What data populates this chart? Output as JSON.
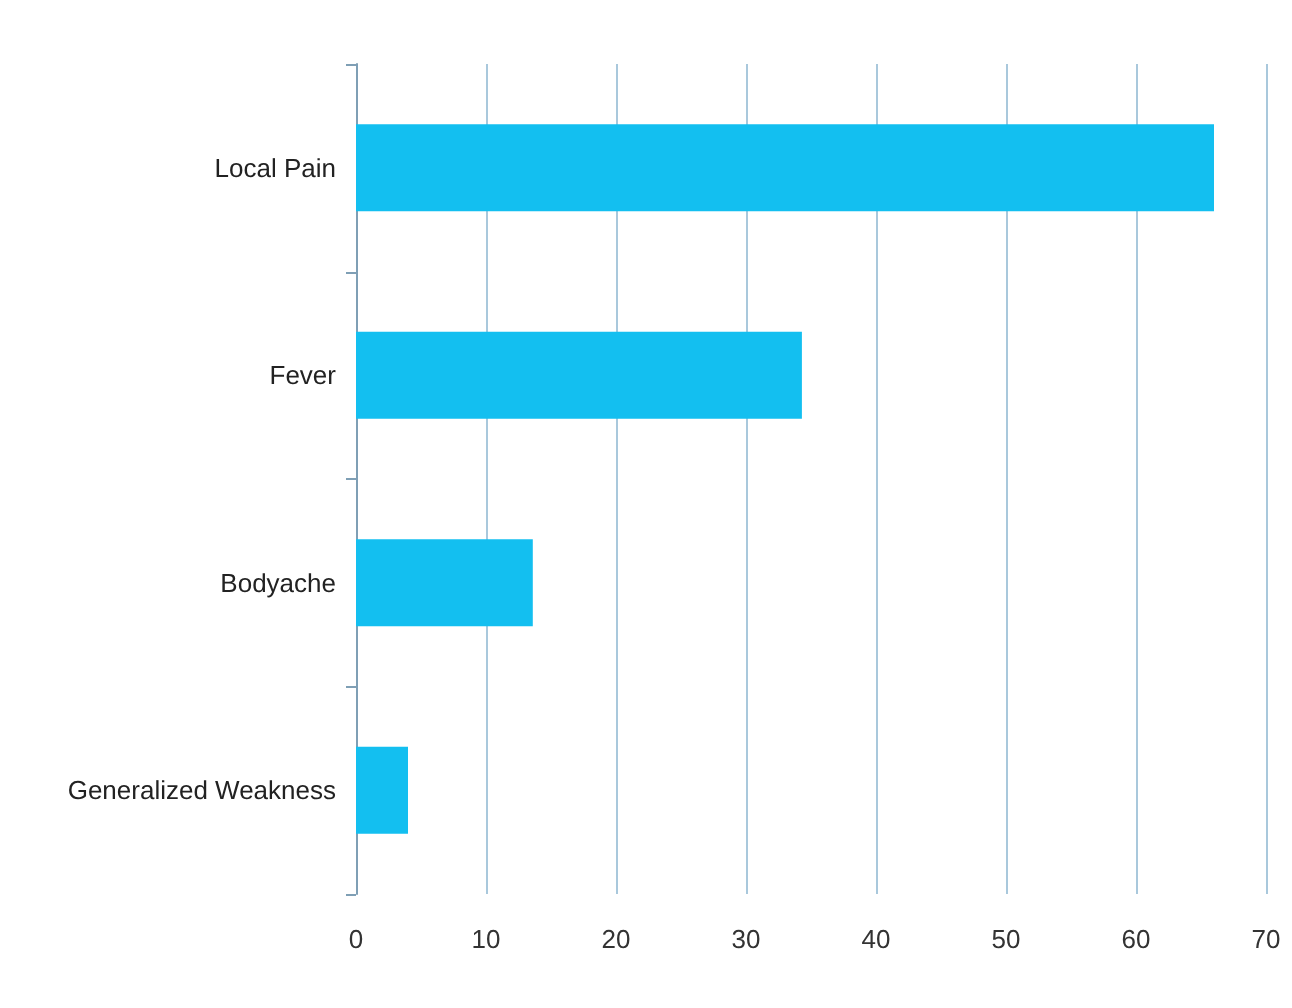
{
  "chart_data": {
    "type": "bar",
    "orientation": "horizontal",
    "categories": [
      "Local Pain",
      "Fever",
      "Bodyache",
      "Generalized Weakness"
    ],
    "values": [
      66,
      34.3,
      13.6,
      4
    ],
    "color": "#13bff0",
    "xlim": [
      0,
      70
    ],
    "xticks": [
      0,
      10,
      20,
      30,
      40,
      50,
      60,
      70
    ],
    "grid": "x"
  }
}
